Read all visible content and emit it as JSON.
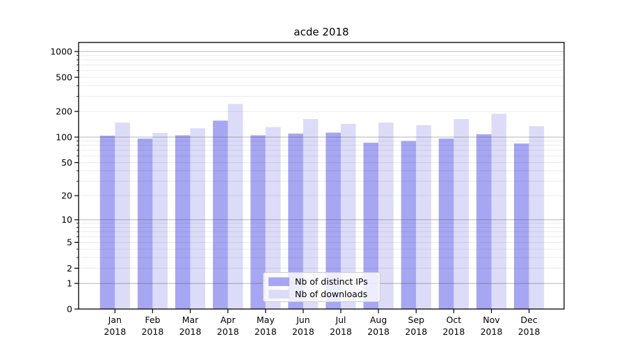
{
  "title": "acde 2018",
  "chart_data": {
    "type": "bar",
    "title": "acde 2018",
    "categories": [
      "Jan",
      "Feb",
      "Mar",
      "Apr",
      "May",
      "Jun",
      "Jul",
      "Aug",
      "Sep",
      "Oct",
      "Nov",
      "Dec"
    ],
    "tick_year": "2018",
    "series": [
      {
        "name": "Nb of distinct IPs",
        "color": "#a6a6f2",
        "values": [
          104,
          96,
          105,
          156,
          105,
          110,
          113,
          86,
          90,
          96,
          108,
          84
        ]
      },
      {
        "name": "Nb of downloads",
        "color": "#dcdcf9",
        "values": [
          148,
          112,
          127,
          245,
          131,
          163,
          143,
          148,
          138,
          163,
          188,
          134
        ]
      }
    ],
    "xlabel": "",
    "ylabel": "",
    "yscale": "symlog-like: position = log10(value + 1)",
    "ylim": [
      0,
      1250
    ],
    "yticks": [
      0,
      1,
      2,
      5,
      10,
      20,
      50,
      100,
      200,
      500,
      1000
    ],
    "minor_yticks": [
      2,
      3,
      4,
      5,
      6,
      7,
      8,
      9,
      20,
      30,
      40,
      50,
      60,
      70,
      80,
      90,
      200,
      300,
      400,
      500,
      600,
      700,
      800,
      900
    ],
    "major_gridline_yticks": [
      1,
      10,
      100,
      1000
    ],
    "grid": true,
    "legend_position": "lower center",
    "legend_entries": [
      "Nb of distinct IPs",
      "Nb of downloads"
    ]
  },
  "colors": {
    "series_dark": "#a6a6f2",
    "series_light": "#dcdcf9",
    "grid_major": "#b5b5b5",
    "grid_minor": "#e7e7e7",
    "spine": "#000000",
    "legend_border": "#cccccc",
    "background": "#ffffff"
  }
}
